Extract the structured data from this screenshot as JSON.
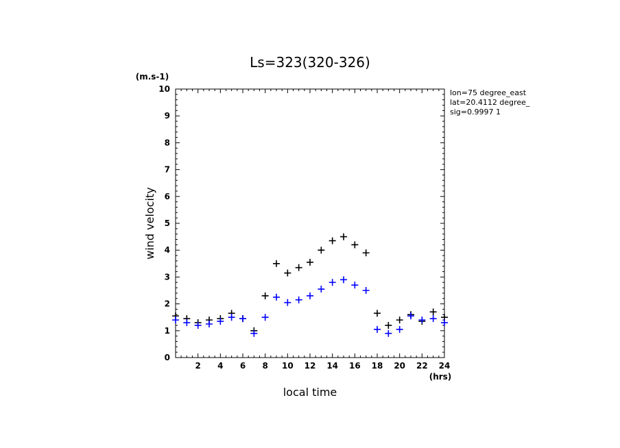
{
  "chart_data": {
    "type": "scatter",
    "title": "Ls=323(320-326)",
    "xlabel": "local time",
    "ylabel": "wind velocity",
    "xunit": "(hrs)",
    "yunit": "(m.s-1)",
    "xlim": [
      0,
      24
    ],
    "ylim": [
      0,
      10
    ],
    "xticks": [
      2,
      4,
      6,
      8,
      10,
      12,
      14,
      16,
      18,
      20,
      22,
      24
    ],
    "yticks": [
      0,
      1,
      2,
      3,
      4,
      5,
      6,
      7,
      8,
      9,
      10
    ],
    "grid": false,
    "info_lines": [
      "lon=75 degree_east",
      "lat=20.4112 degree_",
      "sig=0.9997 1"
    ],
    "series": [
      {
        "color": "#000000",
        "x": [
          0,
          1,
          2,
          3,
          4,
          5,
          6,
          7,
          8,
          9,
          10,
          11,
          12,
          13,
          14,
          15,
          16,
          17,
          18,
          19,
          20,
          21,
          22,
          23,
          24
        ],
        "y": [
          1.55,
          1.45,
          1.3,
          1.4,
          1.45,
          1.65,
          1.45,
          1.0,
          2.3,
          3.5,
          3.15,
          3.35,
          3.55,
          4.0,
          4.35,
          4.5,
          4.2,
          3.9,
          1.65,
          1.2,
          1.4,
          1.6,
          1.35,
          1.7,
          1.5
        ]
      },
      {
        "color": "#0000ff",
        "x": [
          0,
          1,
          2,
          3,
          4,
          5,
          6,
          7,
          8,
          9,
          10,
          11,
          12,
          13,
          14,
          15,
          16,
          17,
          18,
          19,
          20,
          21,
          22,
          23,
          24
        ],
        "y": [
          1.4,
          1.3,
          1.2,
          1.25,
          1.35,
          1.5,
          1.45,
          0.9,
          1.5,
          2.25,
          2.05,
          2.15,
          2.3,
          2.55,
          2.8,
          2.9,
          2.7,
          2.5,
          1.05,
          0.9,
          1.05,
          1.55,
          1.4,
          1.45,
          1.3
        ]
      }
    ]
  }
}
